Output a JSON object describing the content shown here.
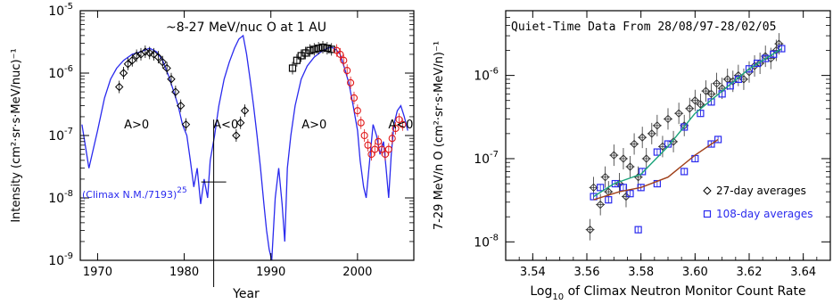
{
  "chart_data": [
    {
      "type": "line",
      "title": "~8-27 MeV/nuc O at 1 AU",
      "xlabel": "Year",
      "ylabel": "Intensity (cm²·sr·s·MeV/nuc)⁻¹",
      "xlim": [
        1968,
        2006.5
      ],
      "ylim": [
        1e-09,
        1e-05
      ],
      "y_scale": "log",
      "x_ticks": [
        "1970",
        "1980",
        "1990",
        "2000"
      ],
      "y_tick_mantissa": "10",
      "y_tick_exponents": [
        "-9",
        "-8",
        "-7",
        "-6",
        "-5"
      ],
      "annotations": [
        {
          "text": "A>0",
          "x": 1974.5,
          "y": 1.3e-07
        },
        {
          "text": "A<0",
          "x": 1984.8,
          "y": 1.3e-07
        },
        {
          "text": "A>0",
          "x": 1995.0,
          "y": 1.3e-07
        },
        {
          "text": "A<0",
          "x": 2005.0,
          "y": 1.3e-07
        }
      ],
      "series_label": {
        "text": "(Climax N.M./7193)",
        "exponent": "25",
        "color": "#2a2aee"
      },
      "colors": {
        "neutron_monitor": "#2a2aee",
        "oxygen_early": "#000000",
        "oxygen_late": "#e11b1b"
      },
      "series": [
        {
          "key": "neutron_monitor",
          "style": "line",
          "x": [
            1968.2,
            1969.0,
            1970.0,
            1970.8,
            1971.5,
            1972.2,
            1973.0,
            1974.0,
            1975.0,
            1976.0,
            1976.8,
            1977.5,
            1978.2,
            1978.8,
            1979.3,
            1979.8,
            1980.3,
            1980.7,
            1981.1,
            1981.5,
            1981.9,
            1982.3,
            1982.7,
            1983.0,
            1983.5,
            1984.0,
            1984.6,
            1985.2,
            1985.8,
            1986.3,
            1986.8,
            1987.2,
            1987.6,
            1988.0,
            1988.4,
            1988.8,
            1989.2,
            1989.5,
            1989.8,
            1990.1,
            1990.5,
            1990.9,
            1991.3,
            1991.6,
            1991.9,
            1992.3,
            1992.8,
            1993.5,
            1994.2,
            1995.0,
            1995.8,
            1996.5,
            1997.0,
            1997.5,
            1998.0,
            1998.5,
            1999.0,
            1999.5,
            2000.0,
            2000.3,
            2000.7,
            2001.0,
            2001.4,
            2001.8,
            2002.2,
            2002.6,
            2003.0,
            2003.3,
            2003.6,
            2003.9,
            2004.2,
            2004.6,
            2005.0,
            2005.4,
            2005.8
          ],
          "y": [
            1.5e-07,
            3e-08,
            1.2e-07,
            4e-07,
            8e-07,
            1.2e-06,
            1.6e-06,
            2e-06,
            2.2e-06,
            2.5e-06,
            2.2e-06,
            1.6e-06,
            9e-07,
            5e-07,
            3e-07,
            1.5e-07,
            1e-07,
            4e-08,
            1.5e-08,
            3e-08,
            8e-09,
            2e-08,
            1e-08,
            4e-08,
            1e-07,
            3e-07,
            8e-07,
            1.5e-06,
            2.5e-06,
            3.5e-06,
            4e-06,
            2e-06,
            8e-07,
            3e-07,
            1e-07,
            3e-08,
            8e-09,
            3e-09,
            1.5e-09,
            1e-09,
            1e-08,
            3e-08,
            8e-09,
            2e-09,
            3e-08,
            1e-07,
            3e-07,
            8e-07,
            1.3e-06,
            1.8e-06,
            2.2e-06,
            2.5e-06,
            2.6e-06,
            2.4e-06,
            2e-06,
            1.2e-06,
            7e-07,
            3e-07,
            1.2e-07,
            4e-08,
            1.5e-08,
            1e-08,
            4e-08,
            1.5e-07,
            1e-07,
            5e-08,
            8e-08,
            3e-08,
            1e-08,
            5e-08,
            1.5e-07,
            2.5e-07,
            3e-07,
            2e-07,
            1.2e-07
          ]
        },
        {
          "key": "oxygen_early",
          "style": "diamond",
          "x": [
            1972.5,
            1973.0,
            1973.5,
            1974.0,
            1974.5,
            1975.0,
            1975.5,
            1976.0,
            1976.5,
            1977.0,
            1977.5,
            1978.0,
            1978.5,
            1979.0,
            1979.6,
            1980.2,
            1986.0,
            1986.5,
            1987.0
          ],
          "y": [
            6e-07,
            1e-06,
            1.4e-06,
            1.6e-06,
            1.9e-06,
            2e-06,
            2.2e-06,
            2.1e-06,
            2e-06,
            1.8e-06,
            1.5e-06,
            1.2e-06,
            8e-07,
            5e-07,
            3e-07,
            1.5e-07,
            1e-07,
            1.6e-07,
            2.5e-07
          ]
        },
        {
          "key": "oxygen_mid",
          "style": "square",
          "x": [
            1992.5,
            1993.0,
            1993.5,
            1994.0,
            1994.5,
            1995.0,
            1995.5,
            1996.0,
            1996.5,
            1997.0
          ],
          "y": [
            1.2e-06,
            1.6e-06,
            1.9e-06,
            2.1e-06,
            2.3e-06,
            2.4e-06,
            2.5e-06,
            2.6e-06,
            2.5e-06,
            2.4e-06
          ]
        },
        {
          "key": "oxygen_late",
          "style": "circle",
          "x": [
            1997.6,
            1998.0,
            1998.4,
            1998.8,
            1999.2,
            1999.6,
            2000.0,
            2000.4,
            2000.8,
            2001.2,
            2001.6,
            2002.0,
            2002.4,
            2002.8,
            2003.2,
            2003.6,
            2004.0,
            2004.4,
            2004.8,
            2005.2
          ],
          "y": [
            2.3e-06,
            2e-06,
            1.6e-06,
            1.1e-06,
            7e-07,
            4e-07,
            2.5e-07,
            1.6e-07,
            1e-07,
            7e-08,
            5e-08,
            6e-08,
            8e-08,
            6e-08,
            5e-08,
            6e-08,
            9e-08,
            1.3e-07,
            1.8e-07,
            1.5e-07
          ]
        }
      ]
    },
    {
      "type": "scatter",
      "title": "Quiet-Time Data From 28/08/97-28/02/05",
      "xlabel_main": "Log",
      "xlabel_sub": "10",
      "xlabel_rest": " of Climax Neutron Monitor Count Rate",
      "ylabel": "7-29 MeV/n O (cm²·sr·s·MeV/n)⁻¹",
      "xlim": [
        3.53,
        3.65
      ],
      "ylim": [
        6e-09,
        6e-06
      ],
      "y_scale": "log",
      "x_ticks": [
        "3.54",
        "3.56",
        "3.58",
        "3.60",
        "3.62",
        "3.64"
      ],
      "y_tick_mantissa": "10",
      "y_tick_exponents": [
        "-8",
        "-7",
        "-6"
      ],
      "legend": [
        {
          "marker": "diamond",
          "text": "27-day averages",
          "color": "#000000"
        },
        {
          "marker": "square",
          "text": "108-day averages",
          "color": "#2a2aee"
        }
      ],
      "legend_position": "lower-right",
      "colors": {
        "averages_27": "#333333",
        "averages_108": "#2a2aee",
        "fit_upper": "#1aa37a",
        "fit_lower": "#a0401a"
      },
      "series": [
        {
          "key": "averages_27",
          "style": "diamond",
          "x": [
            3.5612,
            3.5625,
            3.565,
            3.5668,
            3.568,
            3.57,
            3.572,
            3.5735,
            3.5745,
            3.576,
            3.5775,
            3.579,
            3.5805,
            3.582,
            3.584,
            3.586,
            3.588,
            3.59,
            3.592,
            3.594,
            3.596,
            3.598,
            3.6,
            3.602,
            3.604,
            3.606,
            3.608,
            3.61,
            3.612,
            3.614,
            3.616,
            3.618,
            3.62,
            3.622,
            3.624,
            3.626,
            3.628,
            3.63,
            3.631
          ],
          "y": [
            1.4e-08,
            4.5e-08,
            2.8e-08,
            6e-08,
            4e-08,
            1.1e-07,
            5e-08,
            1e-07,
            3.5e-08,
            8e-08,
            1.5e-07,
            6e-08,
            1.8e-07,
            1e-07,
            2e-07,
            2.5e-07,
            1.4e-07,
            3e-07,
            1.6e-07,
            3.5e-07,
            2.5e-07,
            4e-07,
            5e-07,
            4.5e-07,
            6.5e-07,
            6e-07,
            8e-07,
            7e-07,
            9e-07,
            8.5e-07,
            1e-06,
            9e-07,
            1.1e-06,
            1.3e-06,
            1.4e-06,
            1.7e-06,
            1.6e-06,
            2e-06,
            2.4e-06
          ]
        },
        {
          "key": "averages_108",
          "style": "square",
          "x": [
            3.5625,
            3.565,
            3.568,
            3.5705,
            3.5735,
            3.576,
            3.579,
            3.5805,
            3.586,
            3.59,
            3.596,
            3.602,
            3.606,
            3.61,
            3.613,
            3.616,
            3.62,
            3.623,
            3.626,
            3.629,
            3.632,
            3.58,
            3.586,
            3.596,
            3.6,
            3.606,
            3.6085
          ],
          "y": [
            3.5e-08,
            4.5e-08,
            3.2e-08,
            5e-08,
            4.5e-08,
            3.8e-08,
            1.4e-08,
            7e-08,
            1.2e-07,
            1.5e-07,
            2.4e-07,
            3.5e-07,
            4.8e-07,
            6e-07,
            7.5e-07,
            9e-07,
            1.2e-06,
            1.4e-06,
            1.6e-06,
            1.8e-06,
            2.1e-06,
            4.5e-08,
            5e-08,
            7e-08,
            1e-07,
            1.5e-07,
            1.7e-07
          ]
        },
        {
          "key": "fit_upper",
          "style": "line",
          "x": [
            3.5625,
            3.57,
            3.58,
            3.59,
            3.6,
            3.61,
            3.62,
            3.632
          ],
          "y": [
            3.5e-08,
            5e-08,
            6.5e-08,
            1.4e-07,
            3.5e-07,
            6.5e-07,
            1.2e-06,
            2.1e-06
          ]
        },
        {
          "key": "fit_lower",
          "style": "line",
          "x": [
            3.5625,
            3.572,
            3.58,
            3.59,
            3.6,
            3.6085
          ],
          "y": [
            3.2e-08,
            4e-08,
            4.5e-08,
            6e-08,
            1.1e-07,
            1.7e-07
          ]
        }
      ]
    }
  ]
}
